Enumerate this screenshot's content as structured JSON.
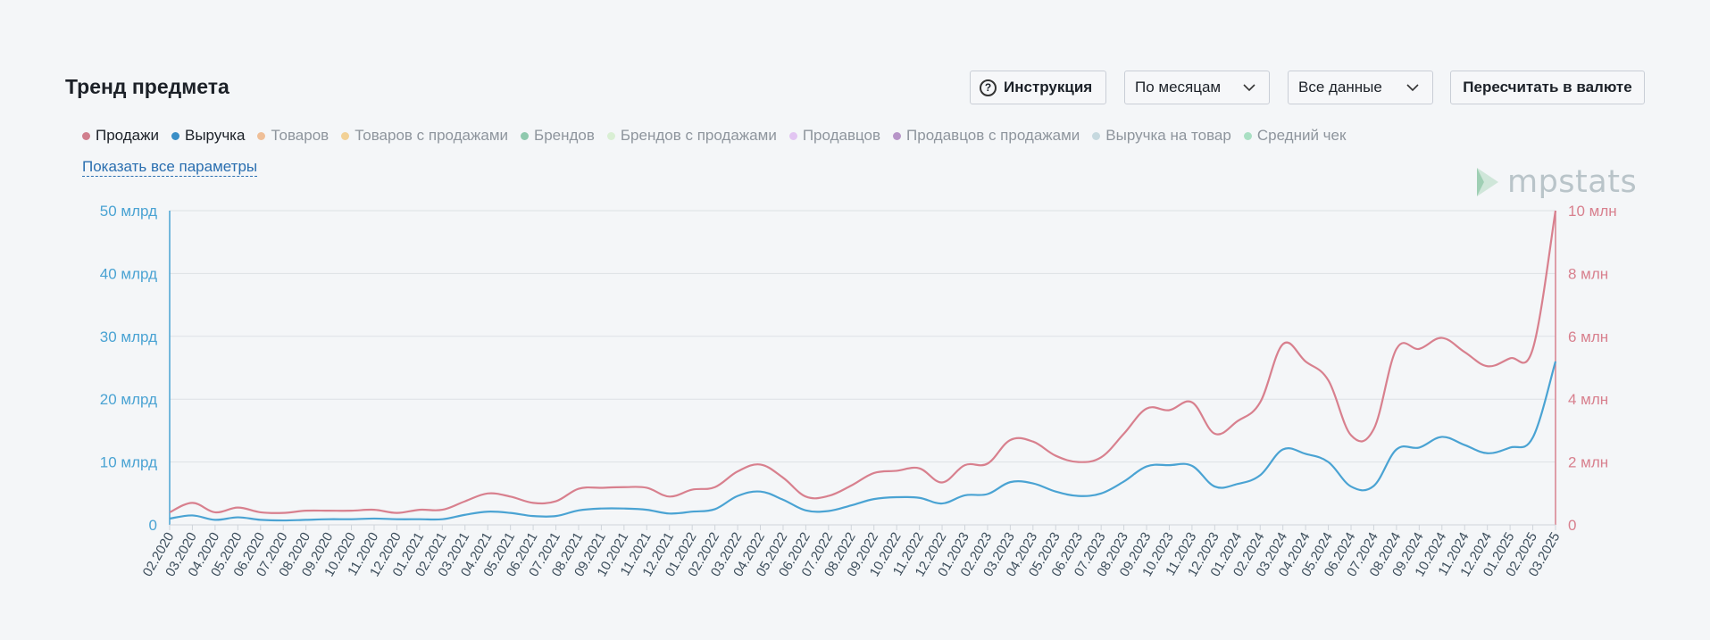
{
  "page": {
    "title": "Тренд предмета"
  },
  "toolbar": {
    "instruction_label": "Инструкция",
    "period_value": "По месяцам",
    "data_value": "Все данные",
    "recalc_label": "Пересчитать в валюте"
  },
  "legend": [
    {
      "label": "Продажи",
      "color": "#d07f8e",
      "active": true
    },
    {
      "label": "Выручка",
      "color": "#3a8fc7",
      "active": true
    },
    {
      "label": "Товаров",
      "color": "#efbf98",
      "active": false
    },
    {
      "label": "Товаров с продажами",
      "color": "#f2d196",
      "active": false
    },
    {
      "label": "Брендов",
      "color": "#8fc9ae",
      "active": false
    },
    {
      "label": "Брендов с продажами",
      "color": "#d9efd4",
      "active": false
    },
    {
      "label": "Продавцов",
      "color": "#e2c5f2",
      "active": false
    },
    {
      "label": "Продавцов с продажами",
      "color": "#b795c8",
      "active": false
    },
    {
      "label": "Выручка на товар",
      "color": "#c6d9df",
      "active": false
    },
    {
      "label": "Средний чек",
      "color": "#a9dfc3",
      "active": false
    }
  ],
  "show_all_label": "Показать все параметры",
  "logo_text": "mpstats",
  "chart_data": {
    "type": "line",
    "x": [
      "02.2020",
      "03.2020",
      "04.2020",
      "05.2020",
      "06.2020",
      "07.2020",
      "08.2020",
      "09.2020",
      "10.2020",
      "11.2020",
      "12.2020",
      "01.2021",
      "02.2021",
      "03.2021",
      "04.2021",
      "05.2021",
      "06.2021",
      "07.2021",
      "08.2021",
      "09.2021",
      "10.2021",
      "11.2021",
      "12.2021",
      "01.2022",
      "02.2022",
      "03.2022",
      "04.2022",
      "05.2022",
      "06.2022",
      "07.2022",
      "08.2022",
      "09.2022",
      "10.2022",
      "11.2022",
      "12.2022",
      "01.2023",
      "02.2023",
      "03.2023",
      "04.2023",
      "05.2023",
      "06.2023",
      "07.2023",
      "08.2023",
      "09.2023",
      "10.2023",
      "11.2023",
      "12.2023",
      "01.2024",
      "02.2024",
      "03.2024",
      "04.2024",
      "05.2024",
      "06.2024",
      "07.2024",
      "08.2024",
      "09.2024",
      "10.2024",
      "11.2024",
      "12.2024",
      "01.2025",
      "02.2025",
      "03.2025"
    ],
    "y_left": {
      "ticks": [
        "0",
        "10 млрд",
        "20 млрд",
        "30 млрд",
        "40 млрд",
        "50 млрд"
      ],
      "range": [
        0,
        50
      ],
      "unit": "млрд",
      "color": "#4aa3d3"
    },
    "y_right": {
      "ticks": [
        "0",
        "2 млн",
        "4 млн",
        "6 млн",
        "8 млн",
        "10 млн"
      ],
      "range": [
        0,
        10
      ],
      "unit": "млн",
      "color": "#d8808e"
    },
    "grid": true,
    "series": [
      {
        "name": "Выручка",
        "axis": "left",
        "color": "#4aa3d3",
        "values": [
          1.0,
          1.5,
          0.8,
          1.2,
          0.8,
          0.7,
          0.8,
          0.9,
          0.9,
          1.0,
          0.9,
          0.9,
          0.9,
          1.6,
          2.1,
          1.9,
          1.4,
          1.4,
          2.3,
          2.6,
          2.6,
          2.4,
          1.8,
          2.1,
          2.5,
          4.6,
          5.3,
          4.0,
          2.3,
          2.2,
          3.1,
          4.1,
          4.4,
          4.3,
          3.4,
          4.7,
          4.9,
          6.8,
          6.6,
          5.3,
          4.6,
          5.0,
          6.9,
          9.3,
          9.5,
          9.4,
          6.1,
          6.5,
          7.9,
          12.0,
          11.3,
          10.0,
          6.1,
          6.2,
          12.0,
          12.3,
          14.0,
          12.7,
          11.4,
          12.3,
          13.9,
          26.0
        ]
      },
      {
        "name": "Продажи",
        "axis": "right",
        "color": "#d8808e",
        "values": [
          0.4,
          0.7,
          0.4,
          0.55,
          0.4,
          0.38,
          0.45,
          0.45,
          0.45,
          0.48,
          0.38,
          0.48,
          0.48,
          0.75,
          1.0,
          0.9,
          0.7,
          0.75,
          1.15,
          1.18,
          1.2,
          1.18,
          0.9,
          1.12,
          1.2,
          1.7,
          1.92,
          1.5,
          0.9,
          0.92,
          1.25,
          1.65,
          1.72,
          1.8,
          1.35,
          1.9,
          1.95,
          2.7,
          2.65,
          2.2,
          2.0,
          2.15,
          2.9,
          3.7,
          3.65,
          3.9,
          2.9,
          3.3,
          3.9,
          5.75,
          5.2,
          4.6,
          2.85,
          3.05,
          5.6,
          5.6,
          5.95,
          5.5,
          5.05,
          5.3,
          5.6,
          10.0
        ]
      }
    ]
  }
}
